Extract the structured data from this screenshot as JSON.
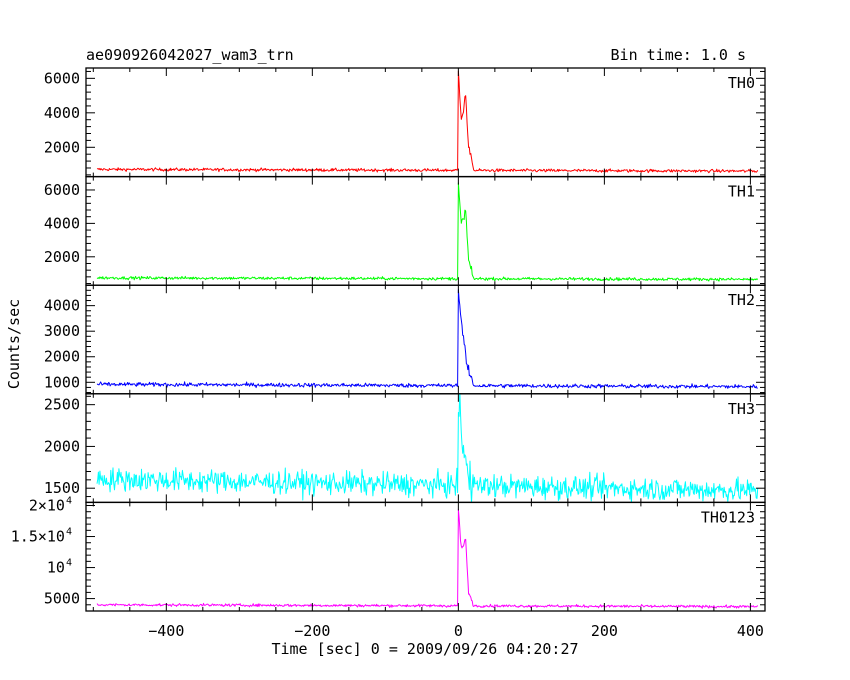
{
  "header": {
    "title": "ae090926042027_wam3_trn",
    "bin_time": "Bin time: 1.0 s"
  },
  "chart_data": {
    "type": "line",
    "title": "ae090926042027_wam3_trn",
    "xlabel": "Time [sec] 0 = 2009/09/26 04:20:27",
    "ylabel": "Counts/sec",
    "xlim": [
      -510,
      420
    ],
    "x_ticks": [
      -400,
      -200,
      0,
      200,
      400
    ],
    "x_tick_labels": [
      "−400",
      "−200",
      "0",
      "200",
      "400"
    ],
    "x_range": [
      -495,
      410
    ],
    "panels": [
      {
        "name": "TH0",
        "color": "#ff0000",
        "ylim": [
          300,
          6600
        ],
        "y_ticks": [
          {
            "value": 2000,
            "label": "2000"
          },
          {
            "value": 4000,
            "label": "4000"
          },
          {
            "value": 6000,
            "label": "6000"
          }
        ],
        "baseline_start": 720,
        "baseline_end": 620,
        "noise": 45,
        "peaks": [
          {
            "t": 0,
            "value": 6400
          },
          {
            "t": 4,
            "value": 3700
          },
          {
            "t": 7,
            "value": 4100
          },
          {
            "t": 10,
            "value": 5100
          },
          {
            "t": 14,
            "value": 2000
          },
          {
            "t": 20,
            "value": 900
          }
        ]
      },
      {
        "name": "TH1",
        "color": "#00ff00",
        "ylim": [
          300,
          6800
        ],
        "y_ticks": [
          {
            "value": 2000,
            "label": "2000"
          },
          {
            "value": 4000,
            "label": "4000"
          },
          {
            "value": 6000,
            "label": "6000"
          }
        ],
        "baseline_start": 740,
        "baseline_end": 650,
        "noise": 45,
        "peaks": [
          {
            "t": 0,
            "value": 6400
          },
          {
            "t": 4,
            "value": 4000
          },
          {
            "t": 7,
            "value": 4300
          },
          {
            "t": 10,
            "value": 4800
          },
          {
            "t": 14,
            "value": 1800
          },
          {
            "t": 20,
            "value": 850
          }
        ]
      },
      {
        "name": "TH2",
        "color": "#0000ff",
        "ylim": [
          550,
          4800
        ],
        "y_ticks": [
          {
            "value": 1000,
            "label": "1000"
          },
          {
            "value": 2000,
            "label": "2000"
          },
          {
            "value": 3000,
            "label": "3000"
          },
          {
            "value": 4000,
            "label": "4000"
          }
        ],
        "baseline_start": 920,
        "baseline_end": 830,
        "noise": 40,
        "peaks": [
          {
            "t": 0,
            "value": 4600
          },
          {
            "t": 4,
            "value": 3400
          },
          {
            "t": 8,
            "value": 2600
          },
          {
            "t": 12,
            "value": 1600
          },
          {
            "t": 20,
            "value": 1000
          }
        ]
      },
      {
        "name": "TH3",
        "color": "#00ffff",
        "ylim": [
          1330,
          2630
        ],
        "y_ticks": [
          {
            "value": 1500,
            "label": "1500"
          },
          {
            "value": 2000,
            "label": "2000"
          },
          {
            "value": 2500,
            "label": "2500"
          }
        ],
        "baseline_start": 1610,
        "baseline_end": 1470,
        "noise": 70,
        "peaks": [
          {
            "t": 0,
            "value": 2580
          },
          {
            "t": 5,
            "value": 2100
          },
          {
            "t": 10,
            "value": 1800
          },
          {
            "t": 20,
            "value": 1580
          }
        ]
      },
      {
        "name": "TH0123",
        "color": "#ff00ff",
        "ylim": [
          3000,
          20500
        ],
        "y_ticks": [
          {
            "value": 5000,
            "label": "5000"
          },
          {
            "value": 10000,
            "label": "10",
            "exp": "4"
          },
          {
            "value": 15000,
            "label": "1.5×10",
            "exp": "4"
          },
          {
            "value": 20000,
            "label": "2×10",
            "exp": "4"
          }
        ],
        "baseline_start": 4000,
        "baseline_end": 3700,
        "noise": 110,
        "peaks": [
          {
            "t": 0,
            "value": 19500
          },
          {
            "t": 4,
            "value": 13000
          },
          {
            "t": 7,
            "value": 13500
          },
          {
            "t": 10,
            "value": 14500
          },
          {
            "t": 14,
            "value": 6000
          },
          {
            "t": 20,
            "value": 4300
          }
        ]
      }
    ]
  }
}
